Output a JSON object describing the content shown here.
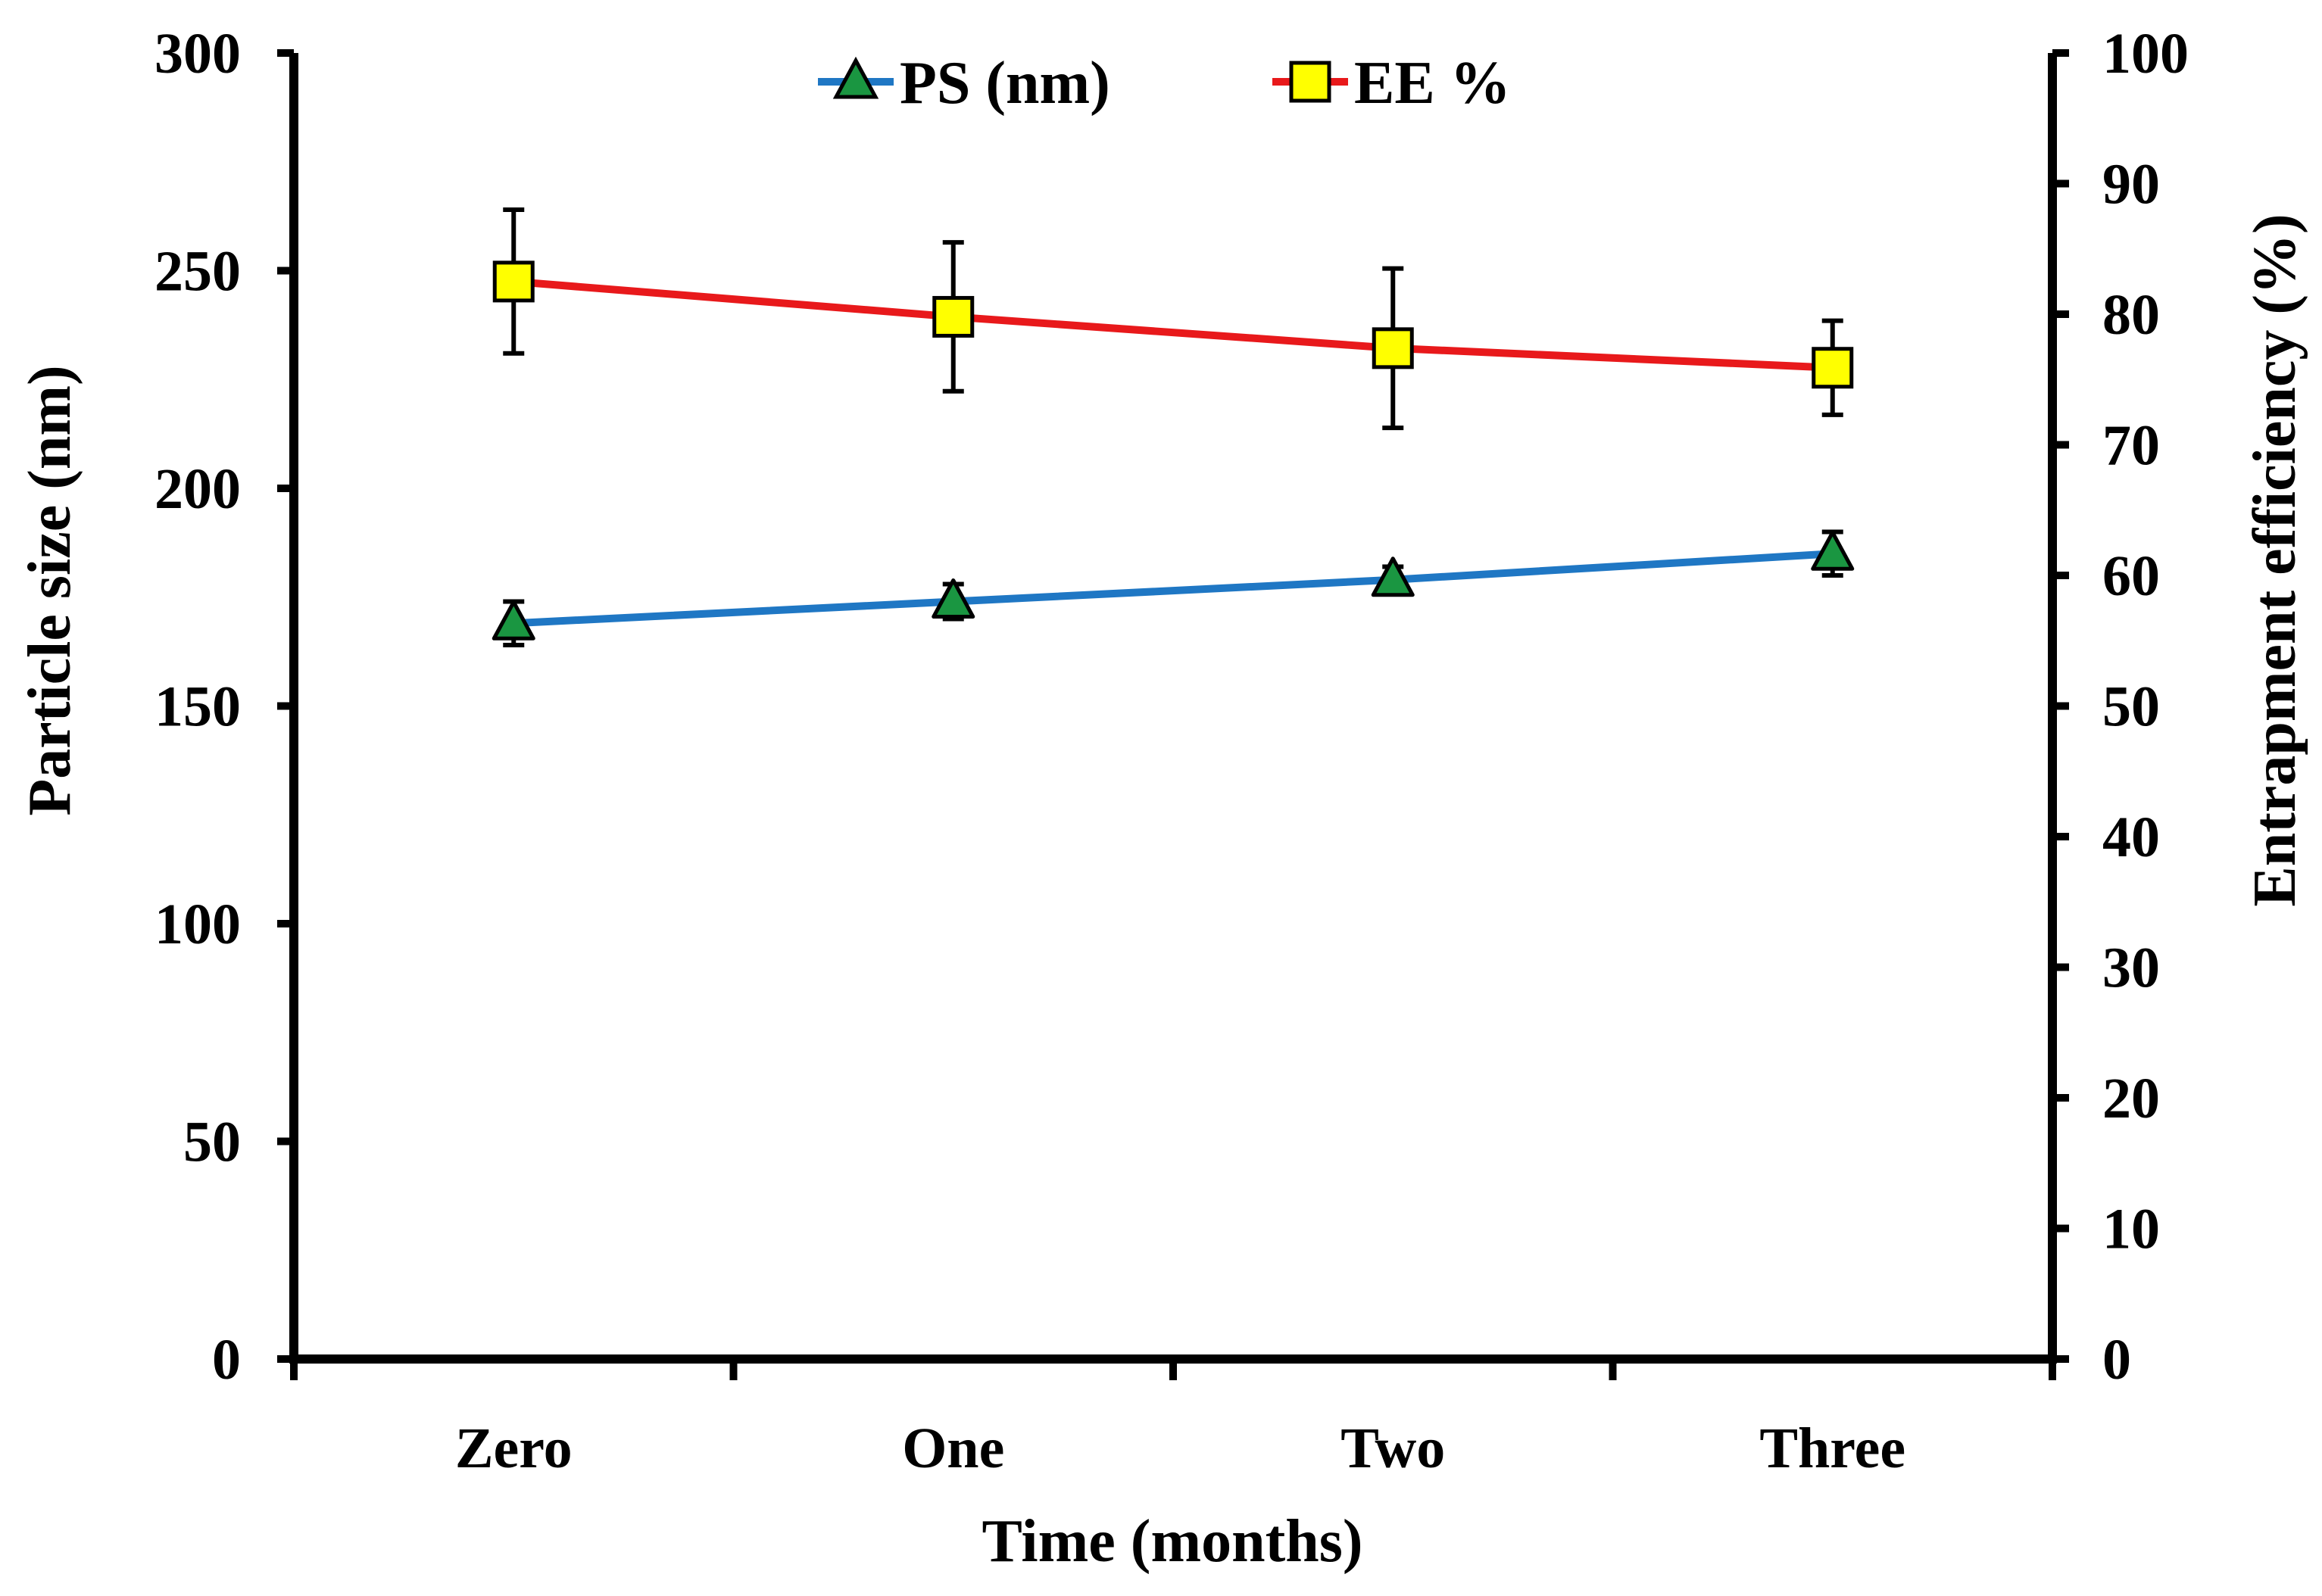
{
  "chart_data": {
    "type": "line",
    "title": "",
    "categories": [
      "Zero",
      "One",
      "Two",
      "Three"
    ],
    "xlabel": "Time (months)",
    "ylabel_left": "Particle size (nm)",
    "ylabel_right": "Entrapment efficiency (%)",
    "ylim_left": [
      0,
      300
    ],
    "yticks_left": [
      0,
      50,
      100,
      150,
      200,
      250,
      300
    ],
    "ylim_right": [
      0,
      100
    ],
    "yticks_right": [
      0,
      10,
      20,
      30,
      40,
      50,
      60,
      70,
      80,
      90,
      100
    ],
    "grid": false,
    "legend_position": "top-center",
    "series": [
      {
        "name": "PS (nm)",
        "axis": "left",
        "values": [
          169,
          174,
          179,
          185
        ],
        "errors": [
          5,
          4,
          3,
          5
        ],
        "line_color": "#1f77c4",
        "marker": "triangle",
        "marker_color": "#1a9641"
      },
      {
        "name": "EE %",
        "axis": "right",
        "values": [
          82.5,
          79.8,
          77.4,
          75.9
        ],
        "errors": [
          5.5,
          5.7,
          6.1,
          3.6
        ],
        "line_color": "#e8191b",
        "marker": "square",
        "marker_color": "#ffff00"
      }
    ]
  }
}
